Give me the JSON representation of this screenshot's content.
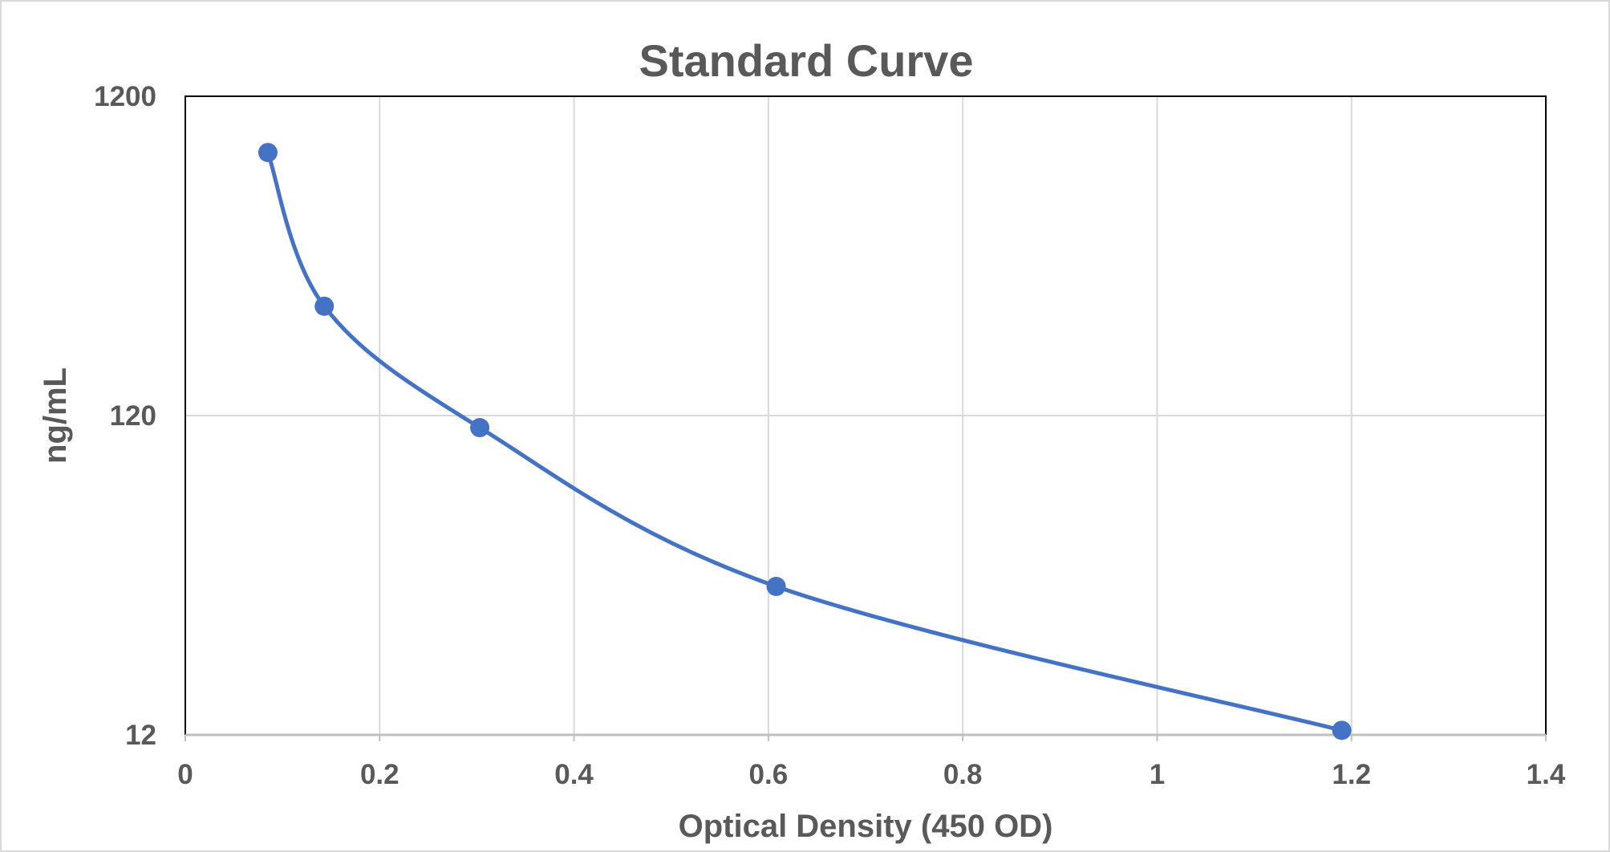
{
  "chart_data": {
    "type": "scatter",
    "title": "Standard Curve",
    "xlabel": "Optical Density (450 OD)",
    "ylabel": "ng/mL",
    "xlim": [
      0,
      1.4
    ],
    "ylim": [
      12,
      1200
    ],
    "y_scale": "log",
    "x_ticks": [
      "0",
      "0.2",
      "0.4",
      "0.6",
      "0.8",
      "1",
      "1.2",
      "1.4"
    ],
    "y_ticks": [
      "12",
      "120",
      "1200"
    ],
    "grid": true,
    "smoothed_line": true,
    "series": [
      {
        "x": [
          0.085,
          0.143,
          0.303,
          0.608,
          1.19
        ],
        "y": [
          800,
          264,
          110,
          35,
          12.4
        ]
      }
    ],
    "colors": {
      "series": "#4472c4",
      "text": "#595959",
      "grid": "#d9d9d9"
    }
  }
}
